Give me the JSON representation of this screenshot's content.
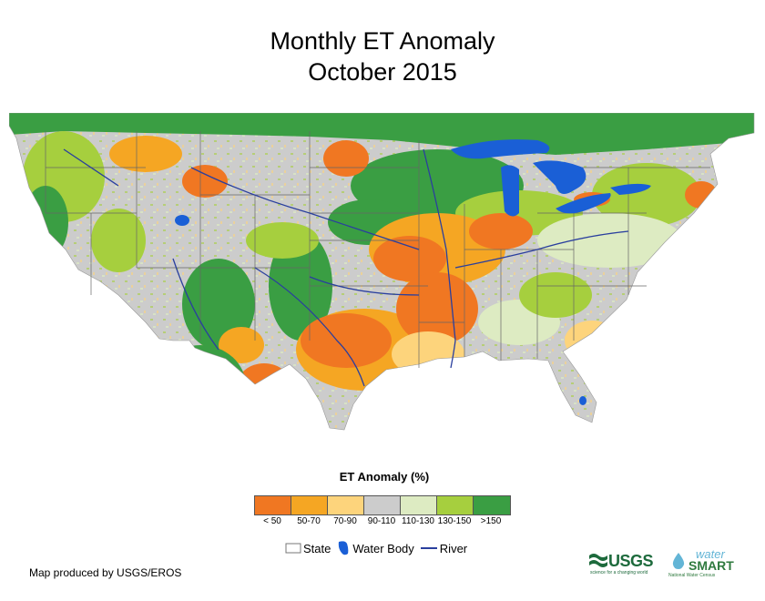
{
  "title_line1": "Monthly ET Anomaly",
  "title_line2": "October 2015",
  "legend": {
    "title": "ET Anomaly (%)",
    "classes": [
      {
        "label": "< 50",
        "color": "#f07722"
      },
      {
        "label": "50-70",
        "color": "#f5a623"
      },
      {
        "label": "70-90",
        "color": "#fdd47c"
      },
      {
        "label": "90-110",
        "color": "#cccccc"
      },
      {
        "label": "110-130",
        "color": "#ddebc2"
      },
      {
        "label": "130-150",
        "color": "#a6cf3e"
      },
      {
        "label": ">150",
        "color": "#3a9e43"
      }
    ]
  },
  "reference_legend": {
    "state": "State",
    "water_body": "Water Body",
    "river": "River"
  },
  "colors": {
    "water_body": "#1a5fd6",
    "river": "#2a3f9e",
    "state_border": "#666666"
  },
  "credit": "Map produced by USGS/EROS",
  "logos": {
    "usgs": "USGS",
    "usgs_tagline": "science for a changing world",
    "watersmart_top": "water",
    "watersmart_main": "SMART",
    "watersmart_tagline": "National Water Census"
  }
}
